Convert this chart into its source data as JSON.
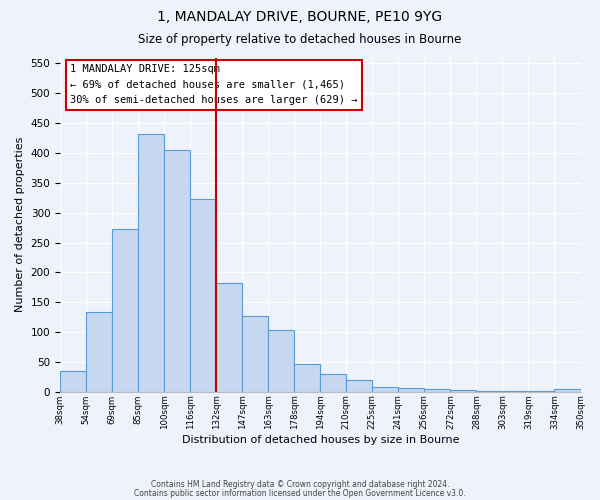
{
  "title": "1, MANDALAY DRIVE, BOURNE, PE10 9YG",
  "subtitle": "Size of property relative to detached houses in Bourne",
  "xlabel": "Distribution of detached houses by size in Bourne",
  "ylabel": "Number of detached properties",
  "bin_edges_labels": [
    "38sqm",
    "54sqm",
    "69sqm",
    "85sqm",
    "100sqm",
    "116sqm",
    "132sqm",
    "147sqm",
    "163sqm",
    "178sqm",
    "194sqm",
    "210sqm",
    "225sqm",
    "241sqm",
    "256sqm",
    "272sqm",
    "288sqm",
    "303sqm",
    "319sqm",
    "334sqm",
    "350sqm"
  ],
  "bar_heights": [
    35,
    133,
    272,
    432,
    405,
    323,
    183,
    127,
    103,
    46,
    30,
    20,
    8,
    7,
    5,
    3,
    2,
    1,
    1,
    4
  ],
  "bar_color": "#c5d8f0",
  "bar_edge_color": "#5b9bd5",
  "property_label": "1 MANDALAY DRIVE: 125sqm",
  "annotation_line1": "← 69% of detached houses are smaller (1,465)",
  "annotation_line2": "30% of semi-detached houses are larger (629) →",
  "annotation_box_color": "#ffffff",
  "annotation_box_edge": "#cc0000",
  "vline_color": "#cc0000",
  "ylim": [
    0,
    560
  ],
  "yticks": [
    0,
    50,
    100,
    150,
    200,
    250,
    300,
    350,
    400,
    450,
    500,
    550
  ],
  "footer1": "Contains HM Land Registry data © Crown copyright and database right 2024.",
  "footer2": "Contains public sector information licensed under the Open Government Licence v3.0.",
  "background_color": "#eef2fa",
  "plot_bg_color": "#eef2fa"
}
